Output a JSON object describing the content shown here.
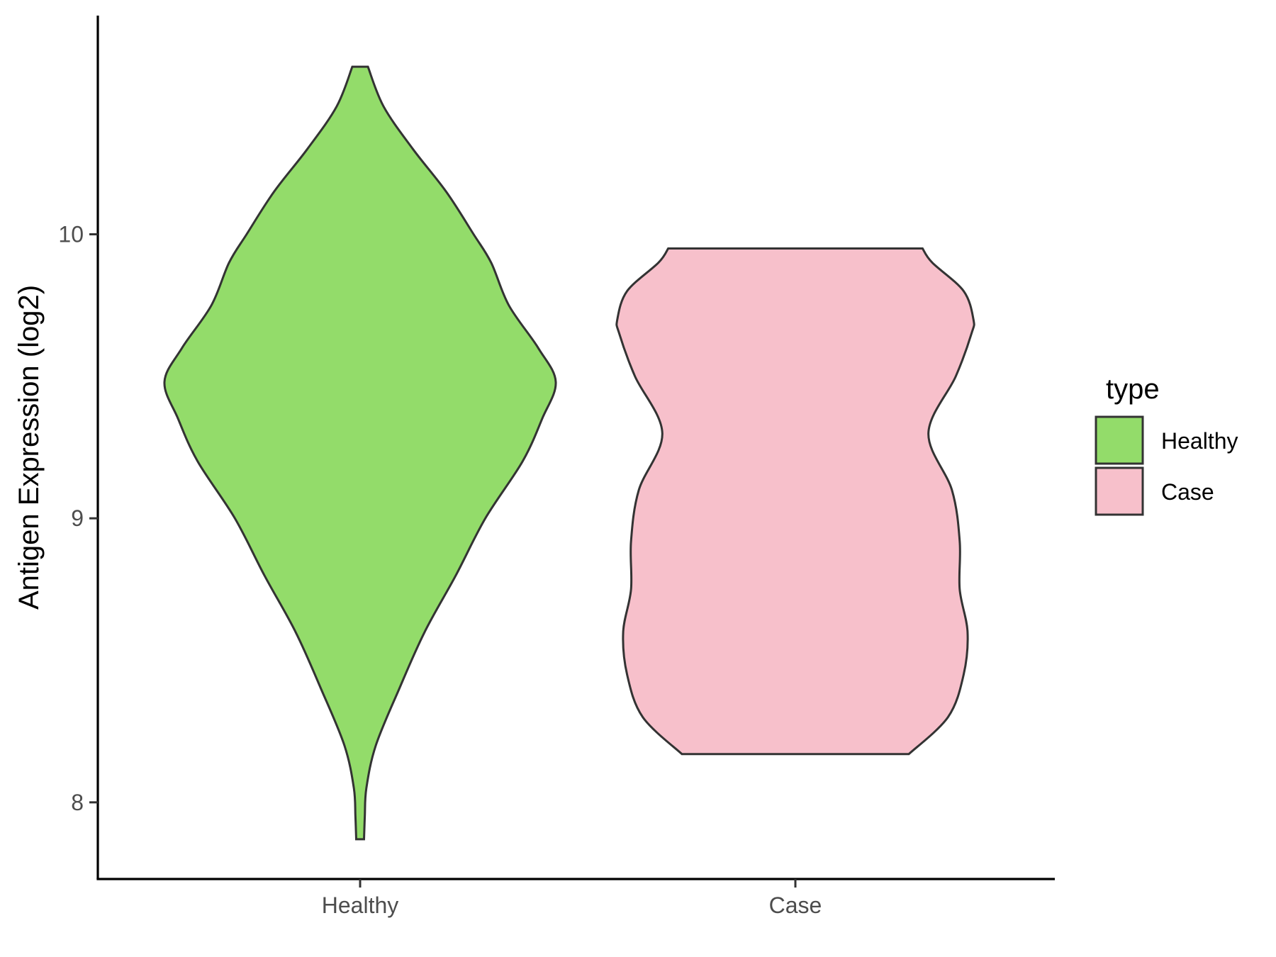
{
  "chart_data": {
    "type": "violin",
    "title": "",
    "xlabel": "",
    "ylabel": "Antigen Expression (log2)",
    "ylim": [
      7.73,
      10.77
    ],
    "yticks": [
      8,
      9,
      10
    ],
    "grid": false,
    "legend": {
      "title": "type",
      "position": "right"
    },
    "categories": [
      "Healthy",
      "Case"
    ],
    "series": [
      {
        "name": "Healthy",
        "color": "#93DC6A",
        "y_min": 7.87,
        "y_max": 10.59,
        "density_profile": [
          [
            7.87,
            0.02
          ],
          [
            7.95,
            0.024
          ],
          [
            8.05,
            0.032
          ],
          [
            8.2,
            0.08
          ],
          [
            8.4,
            0.2
          ],
          [
            8.6,
            0.33
          ],
          [
            8.8,
            0.49
          ],
          [
            9.0,
            0.64
          ],
          [
            9.2,
            0.83
          ],
          [
            9.35,
            0.93
          ],
          [
            9.48,
            1.0
          ],
          [
            9.6,
            0.91
          ],
          [
            9.75,
            0.76
          ],
          [
            9.9,
            0.67
          ],
          [
            10.0,
            0.58
          ],
          [
            10.15,
            0.44
          ],
          [
            10.3,
            0.27
          ],
          [
            10.45,
            0.12
          ],
          [
            10.59,
            0.04
          ]
        ]
      },
      {
        "name": "Case",
        "color": "#F7C0CB",
        "y_min": 8.17,
        "y_max": 9.95,
        "density_profile": [
          [
            8.17,
            0.58
          ],
          [
            8.3,
            0.78
          ],
          [
            8.45,
            0.86
          ],
          [
            8.6,
            0.88
          ],
          [
            8.75,
            0.84
          ],
          [
            8.92,
            0.84
          ],
          [
            9.1,
            0.8
          ],
          [
            9.3,
            0.68
          ],
          [
            9.5,
            0.82
          ],
          [
            9.65,
            0.9
          ],
          [
            9.7,
            0.91
          ],
          [
            9.8,
            0.86
          ],
          [
            9.9,
            0.7
          ],
          [
            9.95,
            0.65
          ]
        ]
      }
    ]
  }
}
